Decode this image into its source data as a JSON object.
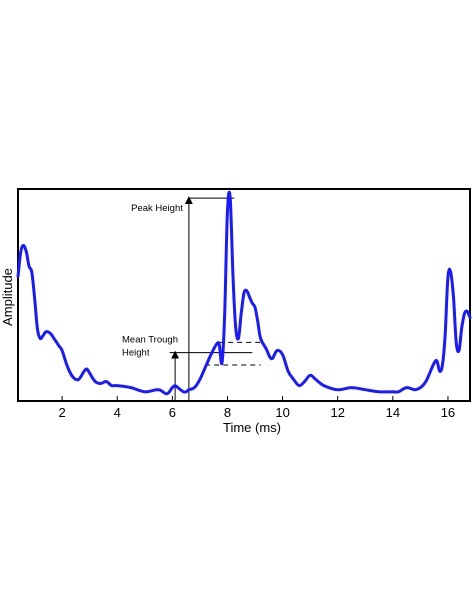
{
  "chart_data": {
    "type": "line",
    "title": "",
    "xlabel": "Time (ms)",
    "ylabel": "Amplitude",
    "xlim": [
      0.4,
      16.8
    ],
    "ylim": [
      0,
      1.0
    ],
    "xticks": [
      2,
      4,
      6,
      8,
      10,
      12,
      14,
      16
    ],
    "xtick_labels": [
      "2",
      "4",
      "6",
      "8",
      "10",
      "12",
      "14",
      "16"
    ],
    "grid": false,
    "legend": "none",
    "line_color": "#1a1aff",
    "series": [
      {
        "x": [
          0.4,
          0.5,
          0.6,
          0.7,
          0.8,
          0.9,
          1.0,
          1.1,
          1.2,
          1.3,
          1.4,
          1.5,
          1.6,
          1.7,
          1.8,
          1.9,
          2.0,
          2.2,
          2.4,
          2.6,
          2.8,
          2.9,
          3.0,
          3.2,
          3.4,
          3.6,
          3.8,
          4.0,
          4.5,
          5.0,
          5.5,
          5.8,
          6.0,
          6.1,
          6.2,
          6.4,
          6.5,
          6.6,
          6.8,
          7.0,
          7.2,
          7.4,
          7.6,
          7.7,
          7.8,
          7.9,
          8.0,
          8.1,
          8.2,
          8.3,
          8.4,
          8.5,
          8.6,
          8.7,
          8.8,
          8.9,
          9.0,
          9.1,
          9.2,
          9.4,
          9.6,
          9.8,
          10.0,
          10.2,
          10.4,
          10.6,
          10.8,
          11.0,
          11.2,
          11.5,
          12.0,
          12.5,
          13.0,
          13.5,
          14.0,
          14.2,
          14.5,
          14.8,
          15.0,
          15.2,
          15.4,
          15.5,
          15.6,
          15.7,
          15.8,
          15.9,
          16.0,
          16.1,
          16.2,
          16.3,
          16.4,
          16.5,
          16.6,
          16.7,
          16.8
        ],
        "y": [
          0.6,
          0.72,
          0.75,
          0.72,
          0.65,
          0.62,
          0.5,
          0.35,
          0.3,
          0.31,
          0.33,
          0.33,
          0.32,
          0.3,
          0.28,
          0.26,
          0.24,
          0.16,
          0.11,
          0.1,
          0.14,
          0.15,
          0.13,
          0.09,
          0.08,
          0.09,
          0.07,
          0.07,
          0.06,
          0.04,
          0.05,
          0.03,
          0.06,
          0.07,
          0.06,
          0.04,
          0.04,
          0.05,
          0.06,
          0.1,
          0.16,
          0.22,
          0.27,
          0.27,
          0.18,
          0.42,
          0.92,
          0.98,
          0.6,
          0.35,
          0.3,
          0.42,
          0.52,
          0.53,
          0.5,
          0.47,
          0.45,
          0.38,
          0.3,
          0.25,
          0.2,
          0.24,
          0.22,
          0.14,
          0.1,
          0.07,
          0.09,
          0.12,
          0.1,
          0.07,
          0.05,
          0.06,
          0.05,
          0.04,
          0.04,
          0.04,
          0.06,
          0.05,
          0.06,
          0.09,
          0.15,
          0.18,
          0.19,
          0.14,
          0.17,
          0.32,
          0.6,
          0.62,
          0.5,
          0.28,
          0.24,
          0.35,
          0.42,
          0.43,
          0.4
        ]
      }
    ],
    "annotations": {
      "peak_label": "Peak Height",
      "trough_label_line1": "Mean Trough",
      "trough_label_line2": "Height",
      "peak_level": 0.98,
      "trough_level": 0.23,
      "trough_dashed_upper": 0.28,
      "trough_dashed_lower": 0.17,
      "peak_arrow_x": 6.6,
      "trough_arrow_x": 6.1,
      "dashed_x_start": 7.7,
      "dashed_x_end": 9.2,
      "trough_line_x_start": 5.9,
      "trough_line_x_end": 8.9
    }
  }
}
